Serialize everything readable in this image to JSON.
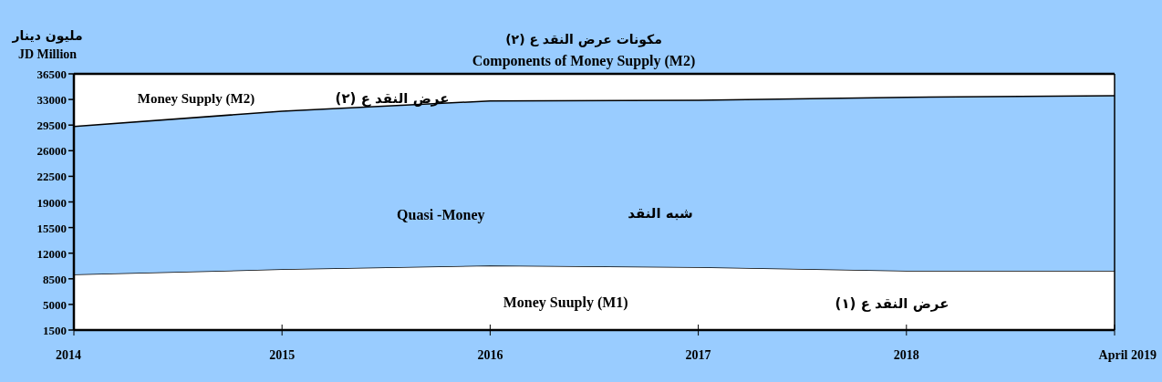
{
  "chart_data": {
    "type": "area",
    "title": "مكونات عرض النقد ع (٢)",
    "subtitle": "Components of Money Supply (M2)",
    "ylabel": "مليون دينار\nJD Million",
    "categories": [
      "2014",
      "2015",
      "2016",
      "2017",
      "2018",
      "April 2019"
    ],
    "stacked": true,
    "series": [
      {
        "name": "Money Suuply (M1)",
        "color": "#ffffff",
        "values": [
          9100,
          9800,
          10300,
          10100,
          9600,
          9600
        ]
      },
      {
        "name": "Quasi -Money",
        "color": "#99ccff",
        "values": [
          20200,
          21600,
          22500,
          22800,
          23700,
          23900
        ]
      }
    ],
    "ylim": [
      1500,
      36500
    ],
    "yticks": [
      1500,
      5000,
      8500,
      12000,
      15500,
      19000,
      22500,
      26000,
      29500,
      33000,
      36500
    ],
    "annotations": [
      "Money Supply (M2)",
      "عرض النقد ع (٢)",
      "شبه النقد",
      "عرض النقد ع (١)"
    ]
  }
}
